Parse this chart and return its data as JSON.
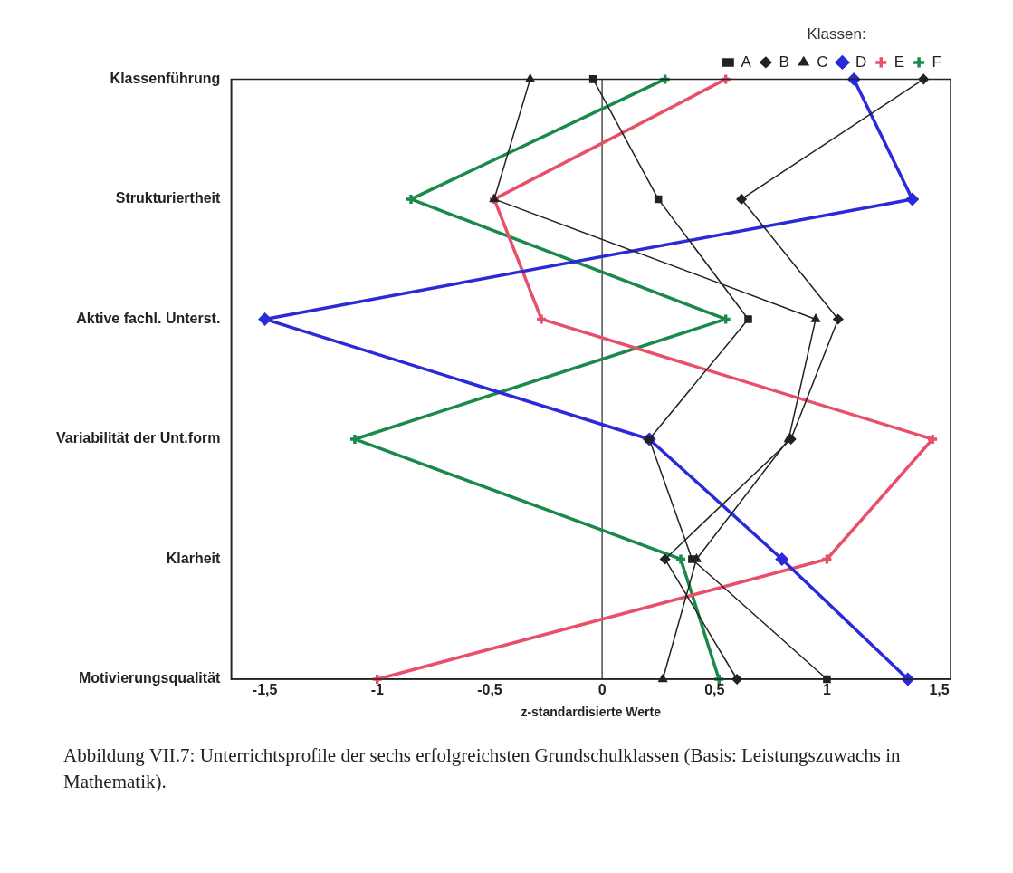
{
  "chart_data": {
    "type": "line",
    "orientation": "horizontal",
    "xlabel": "z-standardisierte Werte",
    "legend_title": "Klassen:",
    "legend": "top right",
    "grid": false,
    "categories": [
      "Klassenführung",
      "Strukturiertheit",
      "Aktive fachl. Unterst.",
      "Variabilität der Unt.form",
      "Klarheit",
      "Motivierungsqualität"
    ],
    "xlim": [
      -1.65,
      1.55
    ],
    "xticks": [
      {
        "value": -1.5,
        "label": "-1,5"
      },
      {
        "value": -1,
        "label": "-1"
      },
      {
        "value": -0.5,
        "label": "-0,5"
      },
      {
        "value": 0,
        "label": "0"
      },
      {
        "value": 0.5,
        "label": "0,5"
      },
      {
        "value": 1,
        "label": "1"
      },
      {
        "value": 1.5,
        "label": "1,5"
      }
    ],
    "ref_lines": [
      {
        "axis": "x",
        "value": 0,
        "color": "#222222"
      }
    ],
    "series": [
      {
        "name": "A",
        "color": "#222222",
        "marker": "square",
        "values": [
          -0.04,
          0.25,
          0.65,
          0.21,
          0.4,
          1.0
        ]
      },
      {
        "name": "B",
        "color": "#222222",
        "marker": "diamond",
        "values": [
          1.43,
          0.62,
          1.05,
          0.84,
          0.28,
          0.6
        ]
      },
      {
        "name": "C",
        "color": "#222222",
        "marker": "triangle",
        "values": [
          -0.32,
          -0.48,
          0.95,
          0.83,
          0.42,
          0.27
        ]
      },
      {
        "name": "D",
        "color": "#2a2ad8",
        "marker": "diamond",
        "values": [
          1.12,
          1.38,
          -1.5,
          0.21,
          0.8,
          1.36
        ]
      },
      {
        "name": "E",
        "color": "#e8506a",
        "marker": "cross",
        "values": [
          0.55,
          -0.48,
          -0.27,
          1.47,
          1.0,
          -1.0
        ]
      },
      {
        "name": "F",
        "color": "#1a8a4a",
        "marker": "cross",
        "values": [
          0.28,
          -0.85,
          0.55,
          -1.1,
          0.35,
          0.52
        ]
      }
    ],
    "annotations": [
      "Abbildung VII.7: Unterrichtsprofile der sechs erfolgreichsten Grundschulklassen (Basis: Leistungszuwachs in Mathematik)."
    ]
  }
}
